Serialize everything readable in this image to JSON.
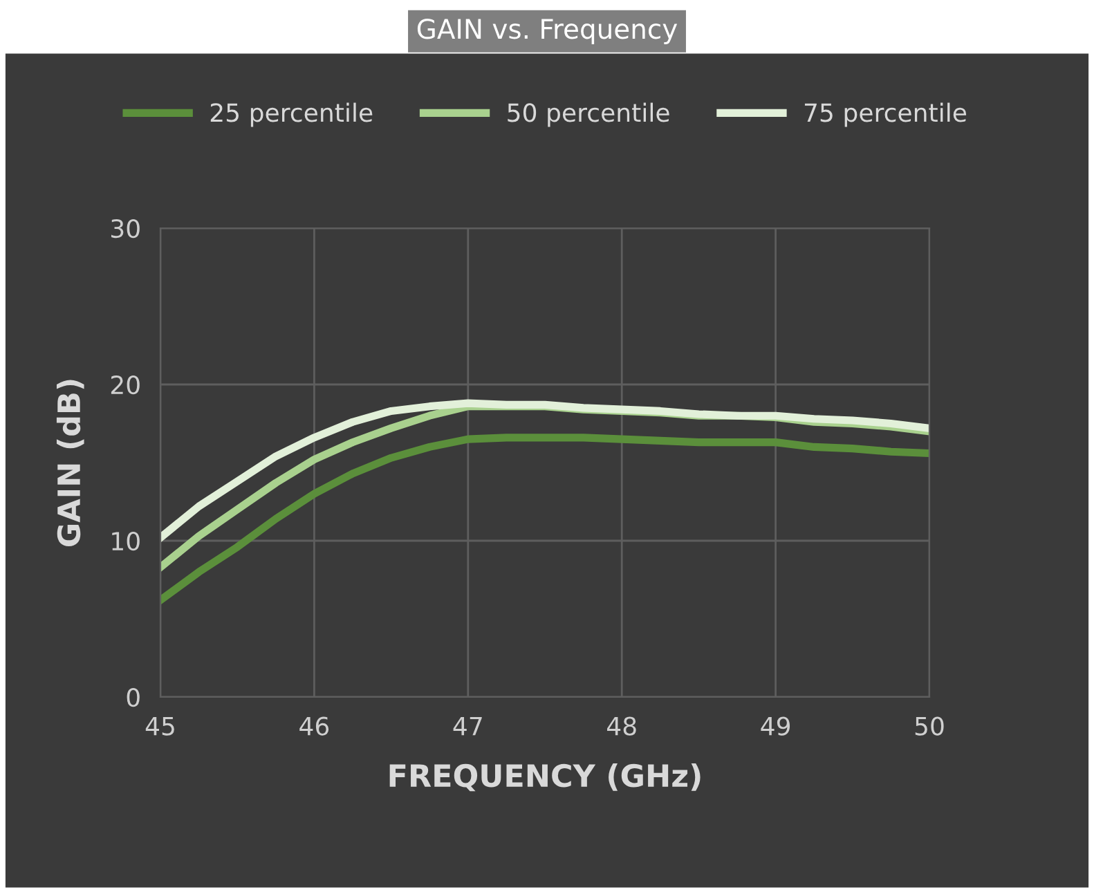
{
  "chart_data": {
    "type": "line",
    "title": "GAIN vs. Frequency",
    "xlabel": "FREQUENCY (GHz)",
    "ylabel": "GAIN (dB)",
    "x": [
      45,
      45.25,
      45.5,
      45.75,
      46,
      46.25,
      46.5,
      46.75,
      47,
      47.25,
      47.5,
      47.75,
      48,
      48.25,
      48.5,
      48.75,
      49,
      49.25,
      49.5,
      49.75,
      50
    ],
    "series": [
      {
        "name": "25 percentile",
        "color": "#5b8f3b",
        "values": [
          6.2,
          8.0,
          9.6,
          11.4,
          13.0,
          14.3,
          15.3,
          16.0,
          16.5,
          16.6,
          16.6,
          16.6,
          16.5,
          16.4,
          16.3,
          16.3,
          16.3,
          16.0,
          15.9,
          15.7,
          15.6
        ]
      },
      {
        "name": "50 percentile",
        "color": "#a9d18e",
        "values": [
          8.3,
          10.3,
          12.0,
          13.7,
          15.2,
          16.3,
          17.2,
          18.0,
          18.6,
          18.6,
          18.6,
          18.4,
          18.3,
          18.2,
          18.0,
          18.0,
          17.9,
          17.6,
          17.5,
          17.3,
          17.0
        ]
      },
      {
        "name": "75 percentile",
        "color": "#e2f0d9",
        "values": [
          10.2,
          12.2,
          13.8,
          15.4,
          16.6,
          17.6,
          18.3,
          18.6,
          18.8,
          18.7,
          18.7,
          18.5,
          18.4,
          18.3,
          18.1,
          18.0,
          18.0,
          17.8,
          17.7,
          17.5,
          17.2
        ]
      }
    ],
    "xlim": [
      45,
      50
    ],
    "ylim": [
      0,
      30
    ],
    "xticks": [
      45,
      46,
      47,
      48,
      49,
      50
    ],
    "yticks": [
      0,
      10,
      20,
      30
    ],
    "grid": true,
    "legend": "top",
    "marker": "none",
    "line_style": "solid"
  }
}
